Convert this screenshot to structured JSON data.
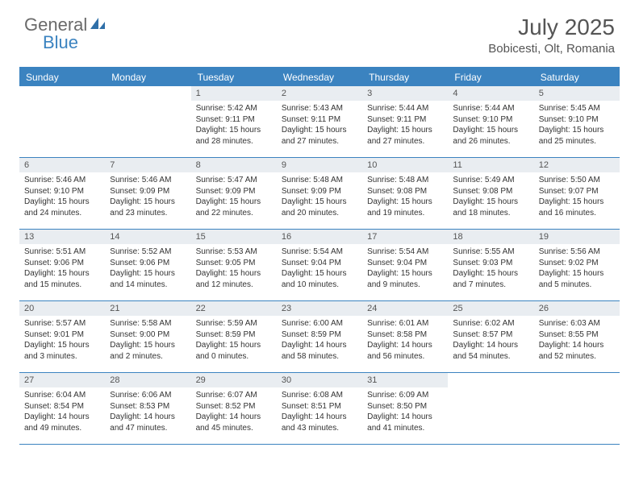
{
  "brand": {
    "part1": "General",
    "part2": "Blue"
  },
  "title": "July 2025",
  "location": "Bobicesti, Olt, Romania",
  "colors": {
    "accent": "#3b83c0",
    "daynum_bg": "#e9edf1",
    "text": "#333333",
    "header_text": "#555555"
  },
  "dayNames": [
    "Sunday",
    "Monday",
    "Tuesday",
    "Wednesday",
    "Thursday",
    "Friday",
    "Saturday"
  ],
  "firstDayOffset": 2,
  "days": [
    {
      "n": "1",
      "sunrise": "Sunrise: 5:42 AM",
      "sunset": "Sunset: 9:11 PM",
      "daylight": "Daylight: 15 hours and 28 minutes."
    },
    {
      "n": "2",
      "sunrise": "Sunrise: 5:43 AM",
      "sunset": "Sunset: 9:11 PM",
      "daylight": "Daylight: 15 hours and 27 minutes."
    },
    {
      "n": "3",
      "sunrise": "Sunrise: 5:44 AM",
      "sunset": "Sunset: 9:11 PM",
      "daylight": "Daylight: 15 hours and 27 minutes."
    },
    {
      "n": "4",
      "sunrise": "Sunrise: 5:44 AM",
      "sunset": "Sunset: 9:10 PM",
      "daylight": "Daylight: 15 hours and 26 minutes."
    },
    {
      "n": "5",
      "sunrise": "Sunrise: 5:45 AM",
      "sunset": "Sunset: 9:10 PM",
      "daylight": "Daylight: 15 hours and 25 minutes."
    },
    {
      "n": "6",
      "sunrise": "Sunrise: 5:46 AM",
      "sunset": "Sunset: 9:10 PM",
      "daylight": "Daylight: 15 hours and 24 minutes."
    },
    {
      "n": "7",
      "sunrise": "Sunrise: 5:46 AM",
      "sunset": "Sunset: 9:09 PM",
      "daylight": "Daylight: 15 hours and 23 minutes."
    },
    {
      "n": "8",
      "sunrise": "Sunrise: 5:47 AM",
      "sunset": "Sunset: 9:09 PM",
      "daylight": "Daylight: 15 hours and 22 minutes."
    },
    {
      "n": "9",
      "sunrise": "Sunrise: 5:48 AM",
      "sunset": "Sunset: 9:09 PM",
      "daylight": "Daylight: 15 hours and 20 minutes."
    },
    {
      "n": "10",
      "sunrise": "Sunrise: 5:48 AM",
      "sunset": "Sunset: 9:08 PM",
      "daylight": "Daylight: 15 hours and 19 minutes."
    },
    {
      "n": "11",
      "sunrise": "Sunrise: 5:49 AM",
      "sunset": "Sunset: 9:08 PM",
      "daylight": "Daylight: 15 hours and 18 minutes."
    },
    {
      "n": "12",
      "sunrise": "Sunrise: 5:50 AM",
      "sunset": "Sunset: 9:07 PM",
      "daylight": "Daylight: 15 hours and 16 minutes."
    },
    {
      "n": "13",
      "sunrise": "Sunrise: 5:51 AM",
      "sunset": "Sunset: 9:06 PM",
      "daylight": "Daylight: 15 hours and 15 minutes."
    },
    {
      "n": "14",
      "sunrise": "Sunrise: 5:52 AM",
      "sunset": "Sunset: 9:06 PM",
      "daylight": "Daylight: 15 hours and 14 minutes."
    },
    {
      "n": "15",
      "sunrise": "Sunrise: 5:53 AM",
      "sunset": "Sunset: 9:05 PM",
      "daylight": "Daylight: 15 hours and 12 minutes."
    },
    {
      "n": "16",
      "sunrise": "Sunrise: 5:54 AM",
      "sunset": "Sunset: 9:04 PM",
      "daylight": "Daylight: 15 hours and 10 minutes."
    },
    {
      "n": "17",
      "sunrise": "Sunrise: 5:54 AM",
      "sunset": "Sunset: 9:04 PM",
      "daylight": "Daylight: 15 hours and 9 minutes."
    },
    {
      "n": "18",
      "sunrise": "Sunrise: 5:55 AM",
      "sunset": "Sunset: 9:03 PM",
      "daylight": "Daylight: 15 hours and 7 minutes."
    },
    {
      "n": "19",
      "sunrise": "Sunrise: 5:56 AM",
      "sunset": "Sunset: 9:02 PM",
      "daylight": "Daylight: 15 hours and 5 minutes."
    },
    {
      "n": "20",
      "sunrise": "Sunrise: 5:57 AM",
      "sunset": "Sunset: 9:01 PM",
      "daylight": "Daylight: 15 hours and 3 minutes."
    },
    {
      "n": "21",
      "sunrise": "Sunrise: 5:58 AM",
      "sunset": "Sunset: 9:00 PM",
      "daylight": "Daylight: 15 hours and 2 minutes."
    },
    {
      "n": "22",
      "sunrise": "Sunrise: 5:59 AM",
      "sunset": "Sunset: 8:59 PM",
      "daylight": "Daylight: 15 hours and 0 minutes."
    },
    {
      "n": "23",
      "sunrise": "Sunrise: 6:00 AM",
      "sunset": "Sunset: 8:59 PM",
      "daylight": "Daylight: 14 hours and 58 minutes."
    },
    {
      "n": "24",
      "sunrise": "Sunrise: 6:01 AM",
      "sunset": "Sunset: 8:58 PM",
      "daylight": "Daylight: 14 hours and 56 minutes."
    },
    {
      "n": "25",
      "sunrise": "Sunrise: 6:02 AM",
      "sunset": "Sunset: 8:57 PM",
      "daylight": "Daylight: 14 hours and 54 minutes."
    },
    {
      "n": "26",
      "sunrise": "Sunrise: 6:03 AM",
      "sunset": "Sunset: 8:55 PM",
      "daylight": "Daylight: 14 hours and 52 minutes."
    },
    {
      "n": "27",
      "sunrise": "Sunrise: 6:04 AM",
      "sunset": "Sunset: 8:54 PM",
      "daylight": "Daylight: 14 hours and 49 minutes."
    },
    {
      "n": "28",
      "sunrise": "Sunrise: 6:06 AM",
      "sunset": "Sunset: 8:53 PM",
      "daylight": "Daylight: 14 hours and 47 minutes."
    },
    {
      "n": "29",
      "sunrise": "Sunrise: 6:07 AM",
      "sunset": "Sunset: 8:52 PM",
      "daylight": "Daylight: 14 hours and 45 minutes."
    },
    {
      "n": "30",
      "sunrise": "Sunrise: 6:08 AM",
      "sunset": "Sunset: 8:51 PM",
      "daylight": "Daylight: 14 hours and 43 minutes."
    },
    {
      "n": "31",
      "sunrise": "Sunrise: 6:09 AM",
      "sunset": "Sunset: 8:50 PM",
      "daylight": "Daylight: 14 hours and 41 minutes."
    }
  ]
}
